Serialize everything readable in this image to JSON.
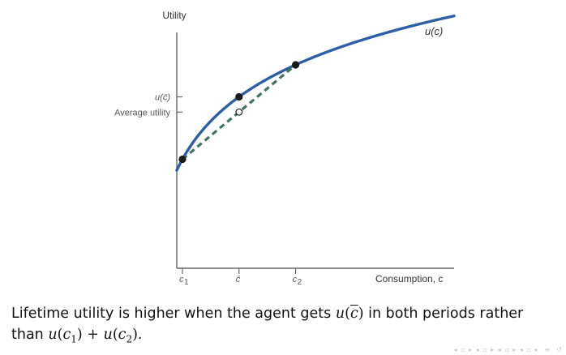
{
  "chart_data": {
    "type": "line",
    "title": "",
    "ylabel": "Utility",
    "xlabel": "Consumption, c",
    "curve_label": "u(c)",
    "curve_function": "u(c) = ln(c)",
    "x_ticks": [
      {
        "name": "c1",
        "label": "c",
        "sub": "1",
        "value": 1.0
      },
      {
        "name": "c-bar",
        "label": "c̄",
        "value": 2.5
      },
      {
        "name": "c2",
        "label": "c",
        "sub": "2",
        "value": 4.0
      }
    ],
    "y_ticks": [
      {
        "name": "u-cbar",
        "label": "u(c̄)",
        "value": 0.9163
      },
      {
        "name": "average-utility",
        "label": "Average utility",
        "value": 0.6931
      }
    ],
    "points": [
      {
        "name": "point-c1",
        "x": 1.0,
        "y": 0.0,
        "filled": true
      },
      {
        "name": "point-cbar-on-curve",
        "x": 2.5,
        "y": 0.9163,
        "filled": true
      },
      {
        "name": "point-c2",
        "x": 4.0,
        "y": 1.3863,
        "filled": true
      },
      {
        "name": "point-average-utility",
        "x": 2.5,
        "y": 0.6931,
        "filled": false
      }
    ],
    "chord": {
      "from": [
        1.0,
        0.0
      ],
      "to": [
        4.0,
        1.3863
      ],
      "style": "dashed"
    },
    "xlim": [
      0.85,
      8.2
    ],
    "ylim": [
      -1.6,
      2.1
    ],
    "colors": {
      "curve": "#2e5ea6",
      "chord": "#3f7360",
      "axis": "#555555",
      "point": "#1a1a1a"
    }
  },
  "caption": {
    "part1": "Lifetime utility is higher when the agent gets ",
    "u": "u",
    "lp": "(",
    "cbar": "c",
    "rp": ")",
    "part2": " in both periods rather",
    "part3": "than ",
    "c": "c",
    "sub1": "1",
    "sub2": "2",
    "plus": " + ",
    "end": "."
  }
}
